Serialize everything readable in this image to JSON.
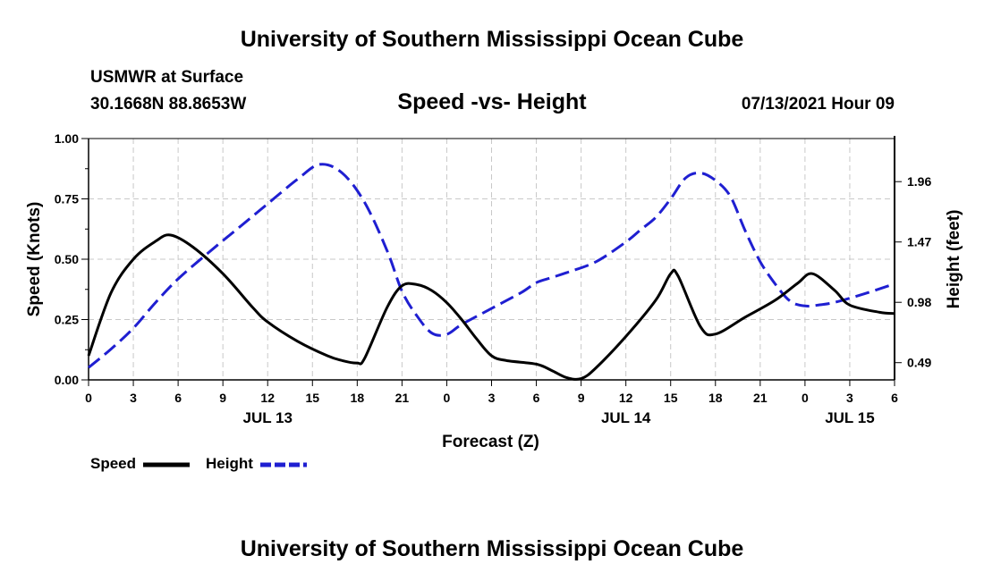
{
  "header": {
    "title": "University of Southern Mississippi Ocean Cube",
    "station": "USMWR at Surface",
    "coords": "30.1668N  88.8653W",
    "datetime": "07/13/2021 Hour 09"
  },
  "footer": {
    "title": "University of Southern Mississippi Ocean Cube"
  },
  "chart_data": {
    "type": "line",
    "title": "Speed -vs- Height",
    "xlabel": "Forecast (Z)",
    "ylabel_left": "Speed (Knots)",
    "ylabel_right": "Height (feet)",
    "x_range_hours": [
      0,
      54
    ],
    "x_ticks": [
      {
        "h": 0,
        "label": "0"
      },
      {
        "h": 3,
        "label": "3"
      },
      {
        "h": 6,
        "label": "6"
      },
      {
        "h": 9,
        "label": "9"
      },
      {
        "h": 12,
        "label": "12"
      },
      {
        "h": 15,
        "label": "15"
      },
      {
        "h": 18,
        "label": "18"
      },
      {
        "h": 21,
        "label": "21"
      },
      {
        "h": 24,
        "label": "0"
      },
      {
        "h": 27,
        "label": "3"
      },
      {
        "h": 30,
        "label": "6"
      },
      {
        "h": 33,
        "label": "9"
      },
      {
        "h": 36,
        "label": "12"
      },
      {
        "h": 39,
        "label": "15"
      },
      {
        "h": 42,
        "label": "18"
      },
      {
        "h": 45,
        "label": "21"
      },
      {
        "h": 48,
        "label": "0"
      },
      {
        "h": 51,
        "label": "3"
      },
      {
        "h": 54,
        "label": "6"
      }
    ],
    "date_labels": [
      {
        "h": 12,
        "label": "JUL 13"
      },
      {
        "h": 36,
        "label": "JUL 14"
      },
      {
        "h": 51,
        "label": "JUL 15"
      }
    ],
    "left_axis": {
      "range": [
        0,
        1
      ],
      "ticks": [
        {
          "v": 0,
          "label": "0.00"
        },
        {
          "v": 0.25,
          "label": "0.25"
        },
        {
          "v": 0.5,
          "label": "0.50"
        },
        {
          "v": 0.75,
          "label": "0.75"
        },
        {
          "v": 1,
          "label": "1.00"
        }
      ]
    },
    "right_axis": {
      "range": [
        0.35,
        2.31
      ],
      "ticks": [
        {
          "v": 0.49,
          "label": "0.49"
        },
        {
          "v": 0.98,
          "label": "0.98"
        },
        {
          "v": 1.47,
          "label": "1.47"
        },
        {
          "v": 1.96,
          "label": "1.96"
        }
      ]
    },
    "grid": true,
    "series": [
      {
        "name": "Speed",
        "color": "#000000",
        "style": "solid",
        "axis": "left",
        "x": [
          0,
          1.5,
          3,
          4.5,
          5.5,
          7,
          9,
          11,
          12,
          14,
          16,
          17,
          18,
          18.5,
          20,
          21,
          22,
          23,
          24,
          25,
          26,
          27,
          28,
          30,
          31,
          32,
          33,
          34,
          36,
          38,
          39,
          39.5,
          41,
          42,
          44,
          46,
          47.5,
          48.5,
          50,
          51,
          53,
          54
        ],
        "values": [
          0.1,
          0.36,
          0.5,
          0.575,
          0.6,
          0.55,
          0.44,
          0.3,
          0.24,
          0.16,
          0.1,
          0.08,
          0.07,
          0.09,
          0.3,
          0.39,
          0.395,
          0.37,
          0.32,
          0.25,
          0.17,
          0.1,
          0.08,
          0.065,
          0.04,
          0.01,
          0.005,
          0.05,
          0.18,
          0.33,
          0.44,
          0.43,
          0.22,
          0.19,
          0.26,
          0.33,
          0.4,
          0.44,
          0.37,
          0.31,
          0.28,
          0.275
        ]
      },
      {
        "name": "Height",
        "color": "#1f1fd1",
        "style": "dashed",
        "axis": "right",
        "x": [
          0,
          1.5,
          3,
          4.5,
          6,
          8,
          10,
          12,
          14,
          15.5,
          17,
          18.5,
          20,
          21,
          22,
          23,
          24,
          25,
          27,
          29,
          30,
          31,
          32,
          34,
          36,
          37,
          38,
          39,
          40,
          41,
          42,
          43,
          44,
          45,
          46,
          47,
          48,
          49,
          50,
          52,
          54
        ],
        "values": [
          0.45,
          0.6,
          0.77,
          0.98,
          1.17,
          1.38,
          1.58,
          1.78,
          1.98,
          2.1,
          2.03,
          1.79,
          1.4,
          1.07,
          0.87,
          0.73,
          0.72,
          0.8,
          0.93,
          1.06,
          1.14,
          1.18,
          1.22,
          1.31,
          1.47,
          1.57,
          1.67,
          1.82,
          1.99,
          2.03,
          1.97,
          1.84,
          1.56,
          1.31,
          1.13,
          0.99,
          0.95,
          0.96,
          0.98,
          1.05,
          1.13
        ]
      }
    ],
    "legend": [
      {
        "label": "Speed",
        "color": "#000000",
        "style": "solid"
      },
      {
        "label": "Height",
        "color": "#1f1fd1",
        "style": "dashed"
      }
    ]
  }
}
